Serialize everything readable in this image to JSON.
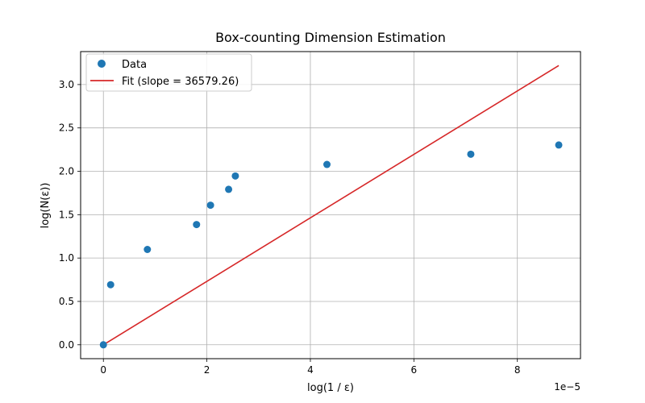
{
  "chart_data": {
    "type": "scatter",
    "title": "Box-counting Dimension Estimation",
    "xlabel": "log(1 / ε)",
    "ylabel": "log(N(ε))",
    "x_offset_label": "1e−5",
    "x_scale": 1e-05,
    "xlim": [
      -0.44,
      9.22
    ],
    "ylim": [
      -0.16,
      3.38
    ],
    "x_ticks": [
      0,
      2,
      4,
      6,
      8
    ],
    "x_tick_labels": [
      "0",
      "2",
      "4",
      "6",
      "8"
    ],
    "y_ticks": [
      0.0,
      0.5,
      1.0,
      1.5,
      2.0,
      2.5,
      3.0
    ],
    "y_tick_labels": [
      "0.0",
      "0.5",
      "1.0",
      "1.5",
      "2.0",
      "2.5",
      "3.0"
    ],
    "grid": true,
    "legend_position": "top-left",
    "series": [
      {
        "name": "Data",
        "kind": "scatter",
        "color": "#1f77b4",
        "points": [
          {
            "x": 0.0,
            "y": 0.0
          },
          {
            "x": 0.14,
            "y": 0.693
          },
          {
            "x": 0.85,
            "y": 1.099
          },
          {
            "x": 1.8,
            "y": 1.386
          },
          {
            "x": 2.07,
            "y": 1.609
          },
          {
            "x": 2.42,
            "y": 1.792
          },
          {
            "x": 2.55,
            "y": 1.946
          },
          {
            "x": 4.32,
            "y": 2.079
          },
          {
            "x": 7.1,
            "y": 2.197
          },
          {
            "x": 8.8,
            "y": 2.303
          }
        ]
      },
      {
        "name": "Fit (slope = 36579.26)",
        "kind": "line",
        "color": "#d62728",
        "points": [
          {
            "x": 0.0,
            "y": 0.0
          },
          {
            "x": 8.8,
            "y": 3.219
          }
        ]
      }
    ]
  }
}
